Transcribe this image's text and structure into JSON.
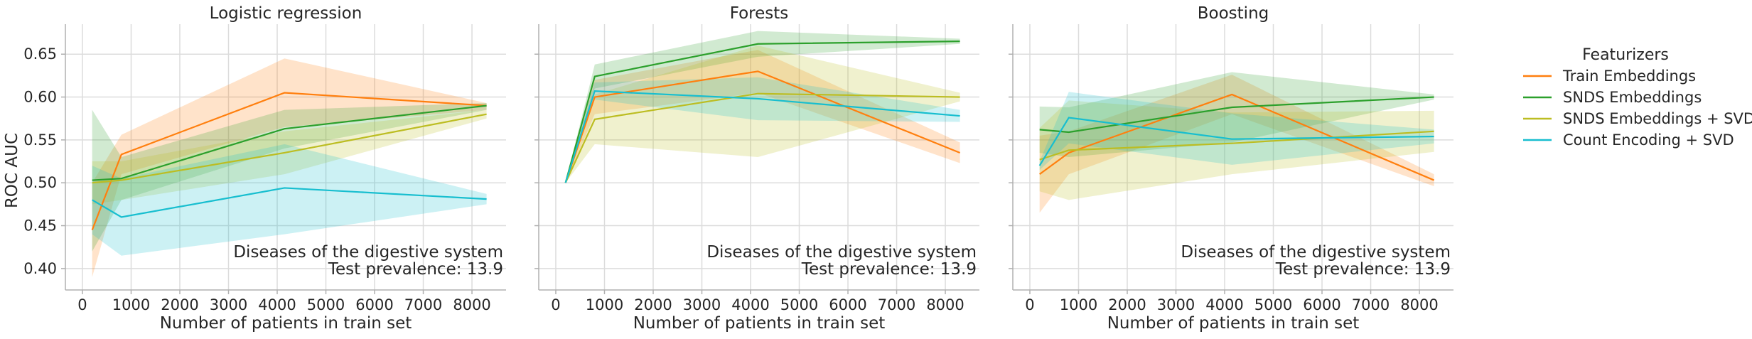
{
  "chart_data": {
    "type": "line",
    "ylabel": "ROC AUC",
    "ylim": [
      0.375,
      0.685
    ],
    "xlim": [
      -350,
      8700
    ],
    "xticks": [
      0,
      1000,
      2000,
      3000,
      4000,
      5000,
      6000,
      7000,
      8000
    ],
    "yticks": [
      0.4,
      0.45,
      0.5,
      0.55,
      0.6,
      0.65
    ],
    "grid": true,
    "legend": {
      "title": "Featurizers",
      "placement": "right",
      "entries": [
        {
          "name": "Train Embeddings",
          "color": "#ff7f0e"
        },
        {
          "name": "SNDS Embeddings",
          "color": "#2ca02c"
        },
        {
          "name": "SNDS Embeddings + SVD",
          "color": "#bcbd22"
        },
        {
          "name": "Count Encoding + SVD",
          "color": "#17becf"
        }
      ]
    },
    "panels": [
      {
        "title": "Logistic regression",
        "xlabel": "Number of patients in train set",
        "annotation": [
          "Diseases of the digestive system",
          "Test prevalence: 13.9"
        ],
        "series": [
          {
            "name": "Train Embeddings",
            "color": "#ff7f0e",
            "x": [
              200,
              800,
              4150,
              8300
            ],
            "y": [
              0.445,
              0.533,
              0.605,
              0.59
            ],
            "lower": [
              0.39,
              0.51,
              0.565,
              0.585
            ],
            "upper": [
              0.5,
              0.556,
              0.645,
              0.593
            ]
          },
          {
            "name": "SNDS Embeddings",
            "color": "#2ca02c",
            "x": [
              200,
              800,
              4150,
              8300
            ],
            "y": [
              0.503,
              0.505,
              0.563,
              0.59
            ],
            "lower": [
              0.42,
              0.48,
              0.54,
              0.585
            ],
            "upper": [
              0.585,
              0.53,
              0.585,
              0.593
            ]
          },
          {
            "name": "SNDS Embeddings + SVD",
            "color": "#bcbd22",
            "x": [
              200,
              800,
              4150,
              8300
            ],
            "y": [
              0.5,
              0.503,
              0.535,
              0.58
            ],
            "lower": [
              0.475,
              0.48,
              0.51,
              0.575
            ],
            "upper": [
              0.525,
              0.525,
              0.56,
              0.585
            ]
          },
          {
            "name": "Count Encoding + SVD",
            "color": "#17becf",
            "x": [
              200,
              800,
              4150,
              8300
            ],
            "y": [
              0.48,
              0.46,
              0.494,
              0.481
            ],
            "lower": [
              0.44,
              0.415,
              0.44,
              0.475
            ],
            "upper": [
              0.52,
              0.505,
              0.545,
              0.487
            ]
          }
        ]
      },
      {
        "title": "Forests",
        "xlabel": "Number of patients in train set",
        "annotation": [
          "Diseases of the digestive system",
          "Test prevalence: 13.9"
        ],
        "series": [
          {
            "name": "Train Embeddings",
            "color": "#ff7f0e",
            "x": [
              200,
              800,
              4150,
              8300
            ],
            "y": [
              0.5,
              0.6,
              0.63,
              0.535
            ],
            "lower": [
              0.5,
              0.58,
              0.605,
              0.523
            ],
            "upper": [
              0.5,
              0.62,
              0.655,
              0.547
            ]
          },
          {
            "name": "SNDS Embeddings",
            "color": "#2ca02c",
            "x": [
              200,
              800,
              4150,
              8300
            ],
            "y": [
              0.5,
              0.624,
              0.662,
              0.665
            ],
            "lower": [
              0.5,
              0.61,
              0.647,
              0.662
            ],
            "upper": [
              0.5,
              0.638,
              0.677,
              0.668
            ]
          },
          {
            "name": "SNDS Embeddings + SVD",
            "color": "#bcbd22",
            "x": [
              200,
              800,
              4150,
              8300
            ],
            "y": [
              0.5,
              0.574,
              0.604,
              0.6
            ],
            "lower": [
              0.5,
              0.545,
              0.53,
              0.595
            ],
            "upper": [
              0.5,
              0.603,
              0.66,
              0.605
            ]
          },
          {
            "name": "Count Encoding + SVD",
            "color": "#17becf",
            "x": [
              200,
              800,
              4150,
              8300
            ],
            "y": [
              0.5,
              0.607,
              0.598,
              0.578
            ],
            "lower": [
              0.5,
              0.597,
              0.573,
              0.571
            ],
            "upper": [
              0.5,
              0.617,
              0.623,
              0.585
            ]
          }
        ]
      },
      {
        "title": "Boosting",
        "xlabel": "Number of patients in train set",
        "annotation": [
          "Diseases of the digestive system",
          "Test prevalence: 13.9"
        ],
        "series": [
          {
            "name": "Train Embeddings",
            "color": "#ff7f0e",
            "x": [
              200,
              800,
              4150,
              8300
            ],
            "y": [
              0.51,
              0.535,
              0.603,
              0.503
            ],
            "lower": [
              0.465,
              0.51,
              0.58,
              0.496
            ],
            "upper": [
              0.555,
              0.56,
              0.626,
              0.51
            ]
          },
          {
            "name": "SNDS Embeddings",
            "color": "#2ca02c",
            "x": [
              200,
              800,
              4150,
              8300
            ],
            "y": [
              0.562,
              0.559,
              0.588,
              0.6
            ],
            "lower": [
              0.535,
              0.53,
              0.547,
              0.597
            ],
            "upper": [
              0.589,
              0.588,
              0.629,
              0.603
            ]
          },
          {
            "name": "SNDS Embeddings + SVD",
            "color": "#bcbd22",
            "x": [
              200,
              800,
              4150,
              8300
            ],
            "y": [
              0.527,
              0.538,
              0.546,
              0.56
            ],
            "lower": [
              0.49,
              0.48,
              0.51,
              0.536
            ],
            "upper": [
              0.564,
              0.596,
              0.582,
              0.584
            ]
          },
          {
            "name": "Count Encoding + SVD",
            "color": "#17becf",
            "x": [
              200,
              800,
              4150,
              8300
            ],
            "y": [
              0.52,
              0.576,
              0.551,
              0.554
            ],
            "lower": [
              0.515,
              0.546,
              0.521,
              0.546
            ],
            "upper": [
              0.525,
              0.606,
              0.581,
              0.562
            ]
          }
        ]
      }
    ]
  }
}
